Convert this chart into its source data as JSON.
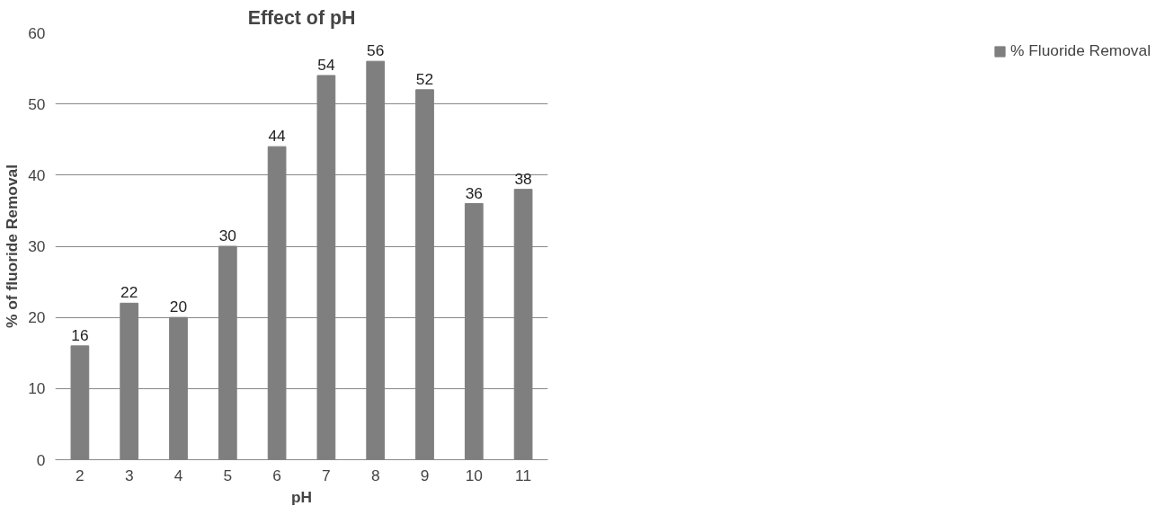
{
  "chart_data": {
    "type": "bar",
    "title": "Effect of pH",
    "xlabel": "pH",
    "ylabel": "% of fluoride Removal",
    "categories": [
      "2",
      "3",
      "4",
      "5",
      "6",
      "7",
      "8",
      "9",
      "10",
      "11"
    ],
    "series": [
      {
        "name": "% Fluoride Removal",
        "color": "#7f7f7f",
        "values": [
          16,
          22,
          20,
          30,
          44,
          54,
          56,
          52,
          36,
          38
        ]
      }
    ],
    "ylim": [
      0,
      60
    ],
    "yticks": [
      0,
      10,
      20,
      30,
      40,
      50,
      60
    ],
    "grid": "y",
    "legend": "right",
    "data_labels": true
  }
}
